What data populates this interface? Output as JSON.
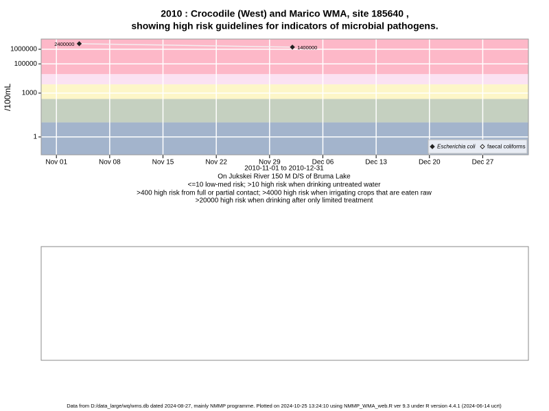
{
  "chart_data": {
    "type": "line",
    "title": [
      "2010 : Crocodile (West) and Marico WMA, site 185640 ,",
      "showing high risk guidelines for indicators of microbial pathogens."
    ],
    "subtitle": [
      "2010-11-01 to 2010-12-31",
      "On Jukskei River 150 M D/S of Bruma Lake",
      "<=10 low-med risk; >10 high risk when drinking untreated water",
      ">400 high risk from full or partial contact; >4000 high risk when irrigating crops that are eaten raw",
      ">20000 high risk when drinking after only limited treatment"
    ],
    "y_label": "/100mL",
    "x": [
      "2010-11-04",
      "2010-12-02"
    ],
    "series": [
      {
        "name": "Escherichia coli",
        "color": "#222222",
        "line_color": "#f4eef0",
        "values": [
          2400000,
          1400000
        ]
      },
      {
        "name": "faecal coliforms",
        "color": "#222222",
        "values": [
          null,
          null
        ]
      }
    ],
    "xlim": [
      "2010-10-30",
      "2011-01-02"
    ],
    "xticks": [
      {
        "value": "2010-11-01",
        "label": "Nov 01"
      },
      {
        "value": "2010-11-08",
        "label": "Nov 08"
      },
      {
        "value": "2010-11-15",
        "label": "Nov 15"
      },
      {
        "value": "2010-11-22",
        "label": "Nov 22"
      },
      {
        "value": "2010-11-29",
        "label": "Nov 29"
      },
      {
        "value": "2010-12-06",
        "label": "Dec 06"
      },
      {
        "value": "2010-12-13",
        "label": "Dec 13"
      },
      {
        "value": "2010-12-20",
        "label": "Dec 20"
      },
      {
        "value": "2010-12-27",
        "label": "Dec 27"
      }
    ],
    "ylim": [
      0.06,
      5000000
    ],
    "yticks": [
      1,
      1000,
      100000,
      1000000
    ],
    "log_scale": true,
    "grid": true,
    "legend": "bottom-right",
    "thresholds": [
      10,
      400,
      4000,
      20000
    ],
    "band_colors": [
      "#a3b4cc",
      "#c5d0c0",
      "#fdf6c8",
      "#fbe2f2",
      "#fdb8c8"
    ],
    "footer": "Data from D:/data_large/wq/wms.db dated 2024-08-27, mainly NMMP programme. Plotted on 2024-10-25 13:24:10 using NMMP_WMA_web.R ver 9.3 under R version 4.4.1 (2024-06-14 ucrt)"
  }
}
